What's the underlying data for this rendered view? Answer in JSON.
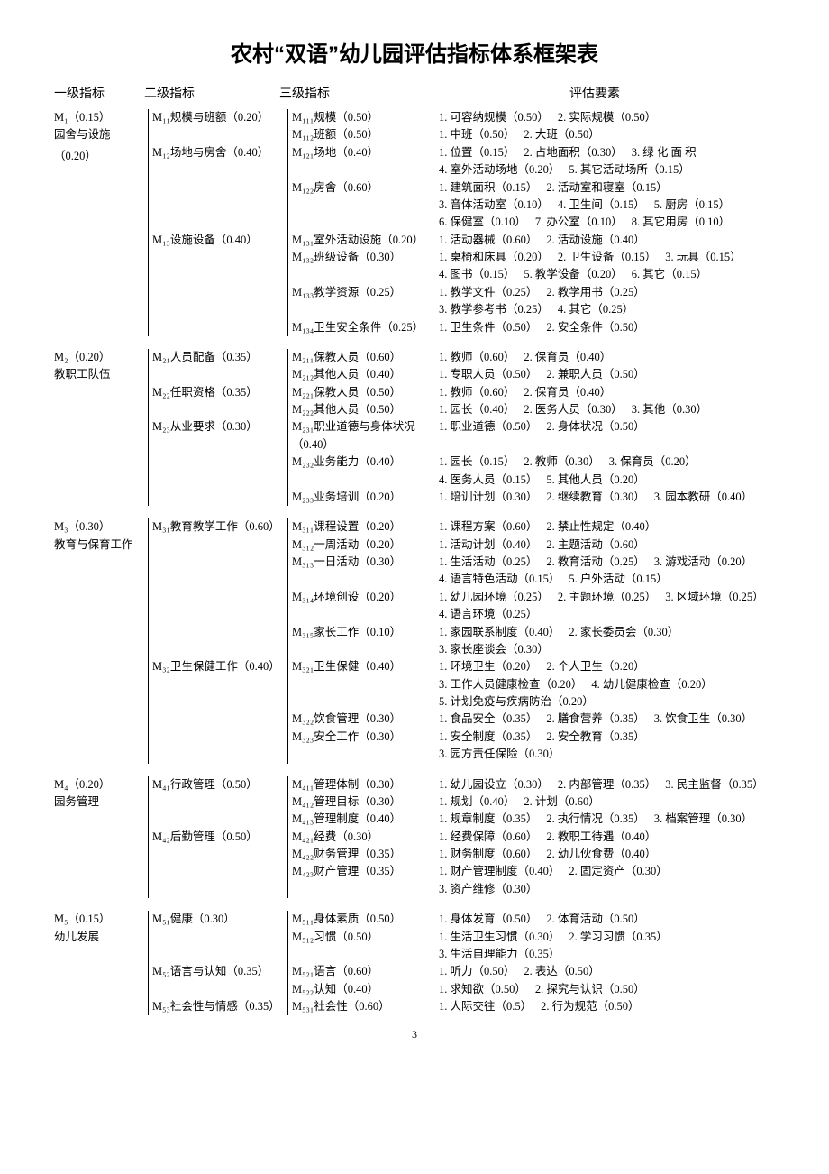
{
  "title": "农村“双语”幼儿园评估指标体系框架表",
  "columns": [
    "一级指标",
    "二级指标",
    "三级指标",
    "评估要素"
  ],
  "page_number": "3",
  "levels": [
    {
      "code": "M₁（0.15）",
      "name": "园舍与设施",
      "extra": "（0.20）",
      "children": [
        {
          "label": "M₁₁规模与班额（0.20）",
          "children": [
            {
              "label": "M₁₁₁规模（0.50）",
              "items": [
                [
                  "1. 可容纳规模（0.50）",
                  "2. 实际规模（0.50）"
                ]
              ]
            },
            {
              "label": "M₁₁₂班额（0.50）",
              "items": [
                [
                  "1. 中班（0.50）",
                  "2. 大班（0.50）"
                ]
              ]
            }
          ]
        },
        {
          "label": "M₁₂场地与房舍（0.40）",
          "children": [
            {
              "label": "M₁₂₁场地（0.40）",
              "items": [
                [
                  "1. 位置（0.15）",
                  "2. 占地面积（0.30）",
                  "3. 绿 化 面 积"
                ],
                [
                  "4. 室外活动场地（0.20）",
                  "5. 其它活动场所（0.15）"
                ]
              ]
            },
            {
              "label": "M₁₂₂房舍（0.60）",
              "items": [
                [
                  "1. 建筑面积（0.15）",
                  "2. 活动室和寝室（0.15）"
                ],
                [
                  "3. 音体活动室（0.10）",
                  "4. 卫生间（0.15）",
                  "5. 厨房（0.15）"
                ],
                [
                  "6. 保健室（0.10）",
                  "7. 办公室（0.10）",
                  "8. 其它用房（0.10）"
                ]
              ]
            }
          ]
        },
        {
          "label": "M₁₃设施设备（0.40）",
          "children": [
            {
              "label": "M₁₃₁室外活动设施（0.20）",
              "items": [
                [
                  "1. 活动器械（0.60）",
                  "2. 活动设施（0.40）"
                ]
              ]
            },
            {
              "label": "M₁₃₂班级设备（0.30）",
              "items": [
                [
                  "1. 桌椅和床具（0.20）",
                  "2. 卫生设备（0.15）",
                  "3. 玩具（0.15）"
                ],
                [
                  "4. 图书（0.15）",
                  "5. 教学设备（0.20）",
                  "6. 其它（0.15）"
                ]
              ]
            },
            {
              "label": "M₁₃₃教学资源（0.25）",
              "items": [
                [
                  "1. 教学文件（0.25）",
                  "2. 教学用书（0.25）"
                ],
                [
                  "3. 教学参考书（0.25）",
                  "4. 其它（0.25）"
                ]
              ]
            },
            {
              "label": "M₁₃₄卫生安全条件（0.25）",
              "items": [
                [
                  "1. 卫生条件（0.50）",
                  "2. 安全条件（0.50）"
                ]
              ]
            }
          ]
        }
      ]
    },
    {
      "code": "M₂（0.20）",
      "name": "教职工队伍",
      "children": [
        {
          "label": "M₂₁人员配备（0.35）",
          "children": [
            {
              "label": "M₂₁₁保教人员（0.60）",
              "items": [
                [
                  "1. 教师（0.60）",
                  "2. 保育员（0.40）"
                ]
              ]
            },
            {
              "label": "M₂₁₂其他人员（0.40）",
              "items": [
                [
                  "1. 专职人员（0.50）",
                  "2. 兼职人员（0.50）"
                ]
              ]
            }
          ]
        },
        {
          "label": "M₂₂任职资格（0.35）",
          "children": [
            {
              "label": "M₂₂₁保教人员（0.50）",
              "items": [
                [
                  "1. 教师（0.60）",
                  "2. 保育员（0.40）"
                ]
              ]
            },
            {
              "label": "M₂₂₂其他人员（0.50）",
              "items": [
                [
                  "1. 园长（0.40）",
                  "2. 医务人员（0.30）",
                  "3. 其他（0.30）"
                ]
              ]
            }
          ]
        },
        {
          "label": "M₂₃从业要求（0.30）",
          "children": [
            {
              "label": "M₂₃₁职业道德与身体状况（0.40）",
              "items": [
                [
                  "1. 职业道德（0.50）",
                  "2. 身体状况（0.50）"
                ]
              ]
            },
            {
              "label": "M₂₃₂业务能力（0.40）",
              "items": [
                [
                  "1. 园长（0.15）",
                  "2. 教师（0.30）",
                  "3. 保育员（0.20）"
                ],
                [
                  "4. 医务人员（0.15）",
                  "5. 其他人员（0.20）"
                ]
              ]
            },
            {
              "label": "M₂₃₃业务培训（0.20）",
              "items": [
                [
                  "1. 培训计划（0.30）",
                  "2. 继续教育（0.30）",
                  "3. 园本教研（0.40）"
                ]
              ]
            }
          ]
        }
      ]
    },
    {
      "code": "M₃（0.30）",
      "name": "教育与保育工作",
      "children": [
        {
          "label": "M₃₁教育教学工作（0.60）",
          "children": [
            {
              "label": "M₃₁₁课程设置（0.20）",
              "items": [
                [
                  "1. 课程方案（0.60）",
                  "2. 禁止性规定（0.40）"
                ]
              ]
            },
            {
              "label": "M₃₁₂一周活动（0.20）",
              "items": [
                [
                  "1. 活动计划（0.40）",
                  "2. 主题活动（0.60）"
                ]
              ]
            },
            {
              "label": "M₃₁₃一日活动（0.30）",
              "items": [
                [
                  "1. 生活活动（0.25）",
                  "2. 教育活动（0.25）",
                  "3. 游戏活动（0.20）"
                ],
                [
                  "4. 语言特色活动（0.15）",
                  "5. 户外活动（0.15）"
                ]
              ]
            },
            {
              "label": "M₃₁₄环境创设（0.20）",
              "items": [
                [
                  "1. 幼儿园环境（0.25）",
                  "2. 主题环境（0.25）",
                  "3. 区域环境（0.25）"
                ],
                [
                  "4. 语言环境（0.25）"
                ]
              ]
            },
            {
              "label": "M₃₁₅家长工作（0.10）",
              "items": [
                [
                  "1. 家园联系制度（0.40）",
                  "2. 家长委员会（0.30）"
                ],
                [
                  "3. 家长座谈会（0.30）"
                ]
              ]
            }
          ]
        },
        {
          "label": "M₃₂卫生保健工作（0.40）",
          "children": [
            {
              "label": "M₃₂₁卫生保健（0.40）",
              "items": [
                [
                  "1. 环境卫生（0.20）",
                  "2. 个人卫生（0.20）"
                ],
                [
                  "3. 工作人员健康检查（0.20）",
                  "4. 幼儿健康检查（0.20）"
                ],
                [
                  "5. 计划免疫与疾病防治（0.20）"
                ]
              ]
            },
            {
              "label": "M₃₂₂饮食管理（0.30）",
              "items": [
                [
                  "1. 食品安全（0.35）",
                  "2. 膳食营养（0.35）",
                  "3. 饮食卫生（0.30）"
                ]
              ]
            },
            {
              "label": "M₃₂₃安全工作（0.30）",
              "items": [
                [
                  "1. 安全制度（0.35）",
                  "2. 安全教育（0.35）"
                ],
                [
                  "3. 园方责任保险（0.30）"
                ]
              ]
            }
          ]
        }
      ]
    },
    {
      "code": "M₄（0.20）",
      "name": "园务管理",
      "children": [
        {
          "label": "M₄₁行政管理（0.50）",
          "children": [
            {
              "label": "M₄₁₁管理体制（0.30）",
              "items": [
                [
                  "1. 幼儿园设立（0.30）",
                  "2. 内部管理（0.35）",
                  "3. 民主监督（0.35）"
                ]
              ]
            },
            {
              "label": "M₄₁₂管理目标（0.30）",
              "items": [
                [
                  "1. 规划（0.40）",
                  "2. 计划（0.60）"
                ]
              ]
            },
            {
              "label": "M₄₁₃管理制度（0.40）",
              "items": [
                [
                  "1. 规章制度（0.35）",
                  "2. 执行情况（0.35）",
                  "3. 档案管理（0.30）"
                ]
              ]
            }
          ]
        },
        {
          "label": "M₄₂后勤管理（0.50）",
          "children": [
            {
              "label": "M₄₂₁经费（0.30）",
              "items": [
                [
                  "1. 经费保障（0.60）",
                  "2. 教职工待遇（0.40）"
                ]
              ]
            },
            {
              "label": "M₄₂₂财务管理（0.35）",
              "items": [
                [
                  "1. 财务制度（0.60）",
                  "2. 幼儿伙食费（0.40）"
                ]
              ]
            },
            {
              "label": "M₄₂₃财产管理（0.35）",
              "items": [
                [
                  "1. 财产管理制度（0.40）",
                  "2. 固定资产（0.30）"
                ],
                [
                  "3. 资产维修（0.30）"
                ]
              ]
            }
          ]
        }
      ]
    },
    {
      "code": "M₅（0.15）",
      "name": "幼儿发展",
      "children": [
        {
          "label": "M₅₁健康（0.30）",
          "children": [
            {
              "label": "M₅₁₁身体素质（0.50）",
              "items": [
                [
                  "1. 身体发育（0.50）",
                  "2. 体育活动（0.50）"
                ]
              ]
            },
            {
              "label": "M₅₁₂习惯（0.50）",
              "items": [
                [
                  "1. 生活卫生习惯（0.30）",
                  "2. 学习习惯（0.35）"
                ],
                [
                  "3. 生活自理能力（0.35）"
                ]
              ]
            }
          ]
        },
        {
          "label": "M₅₂语言与认知（0.35）",
          "children": [
            {
              "label": "M₅₂₁语言（0.60）",
              "items": [
                [
                  "1. 听力（0.50）",
                  "2. 表达（0.50）"
                ]
              ]
            },
            {
              "label": "M₅₂₂认知（0.40）",
              "items": [
                [
                  "1. 求知欲（0.50）",
                  "2. 探究与认识（0.50）"
                ]
              ]
            }
          ]
        },
        {
          "label": "M₅₃社会性与情感（0.35）",
          "children": [
            {
              "label": "M₅₃₁社会性（0.60）",
              "items": [
                [
                  "1. 人际交往（0.5）",
                  "2. 行为规范（0.50）"
                ]
              ]
            }
          ]
        }
      ]
    }
  ]
}
